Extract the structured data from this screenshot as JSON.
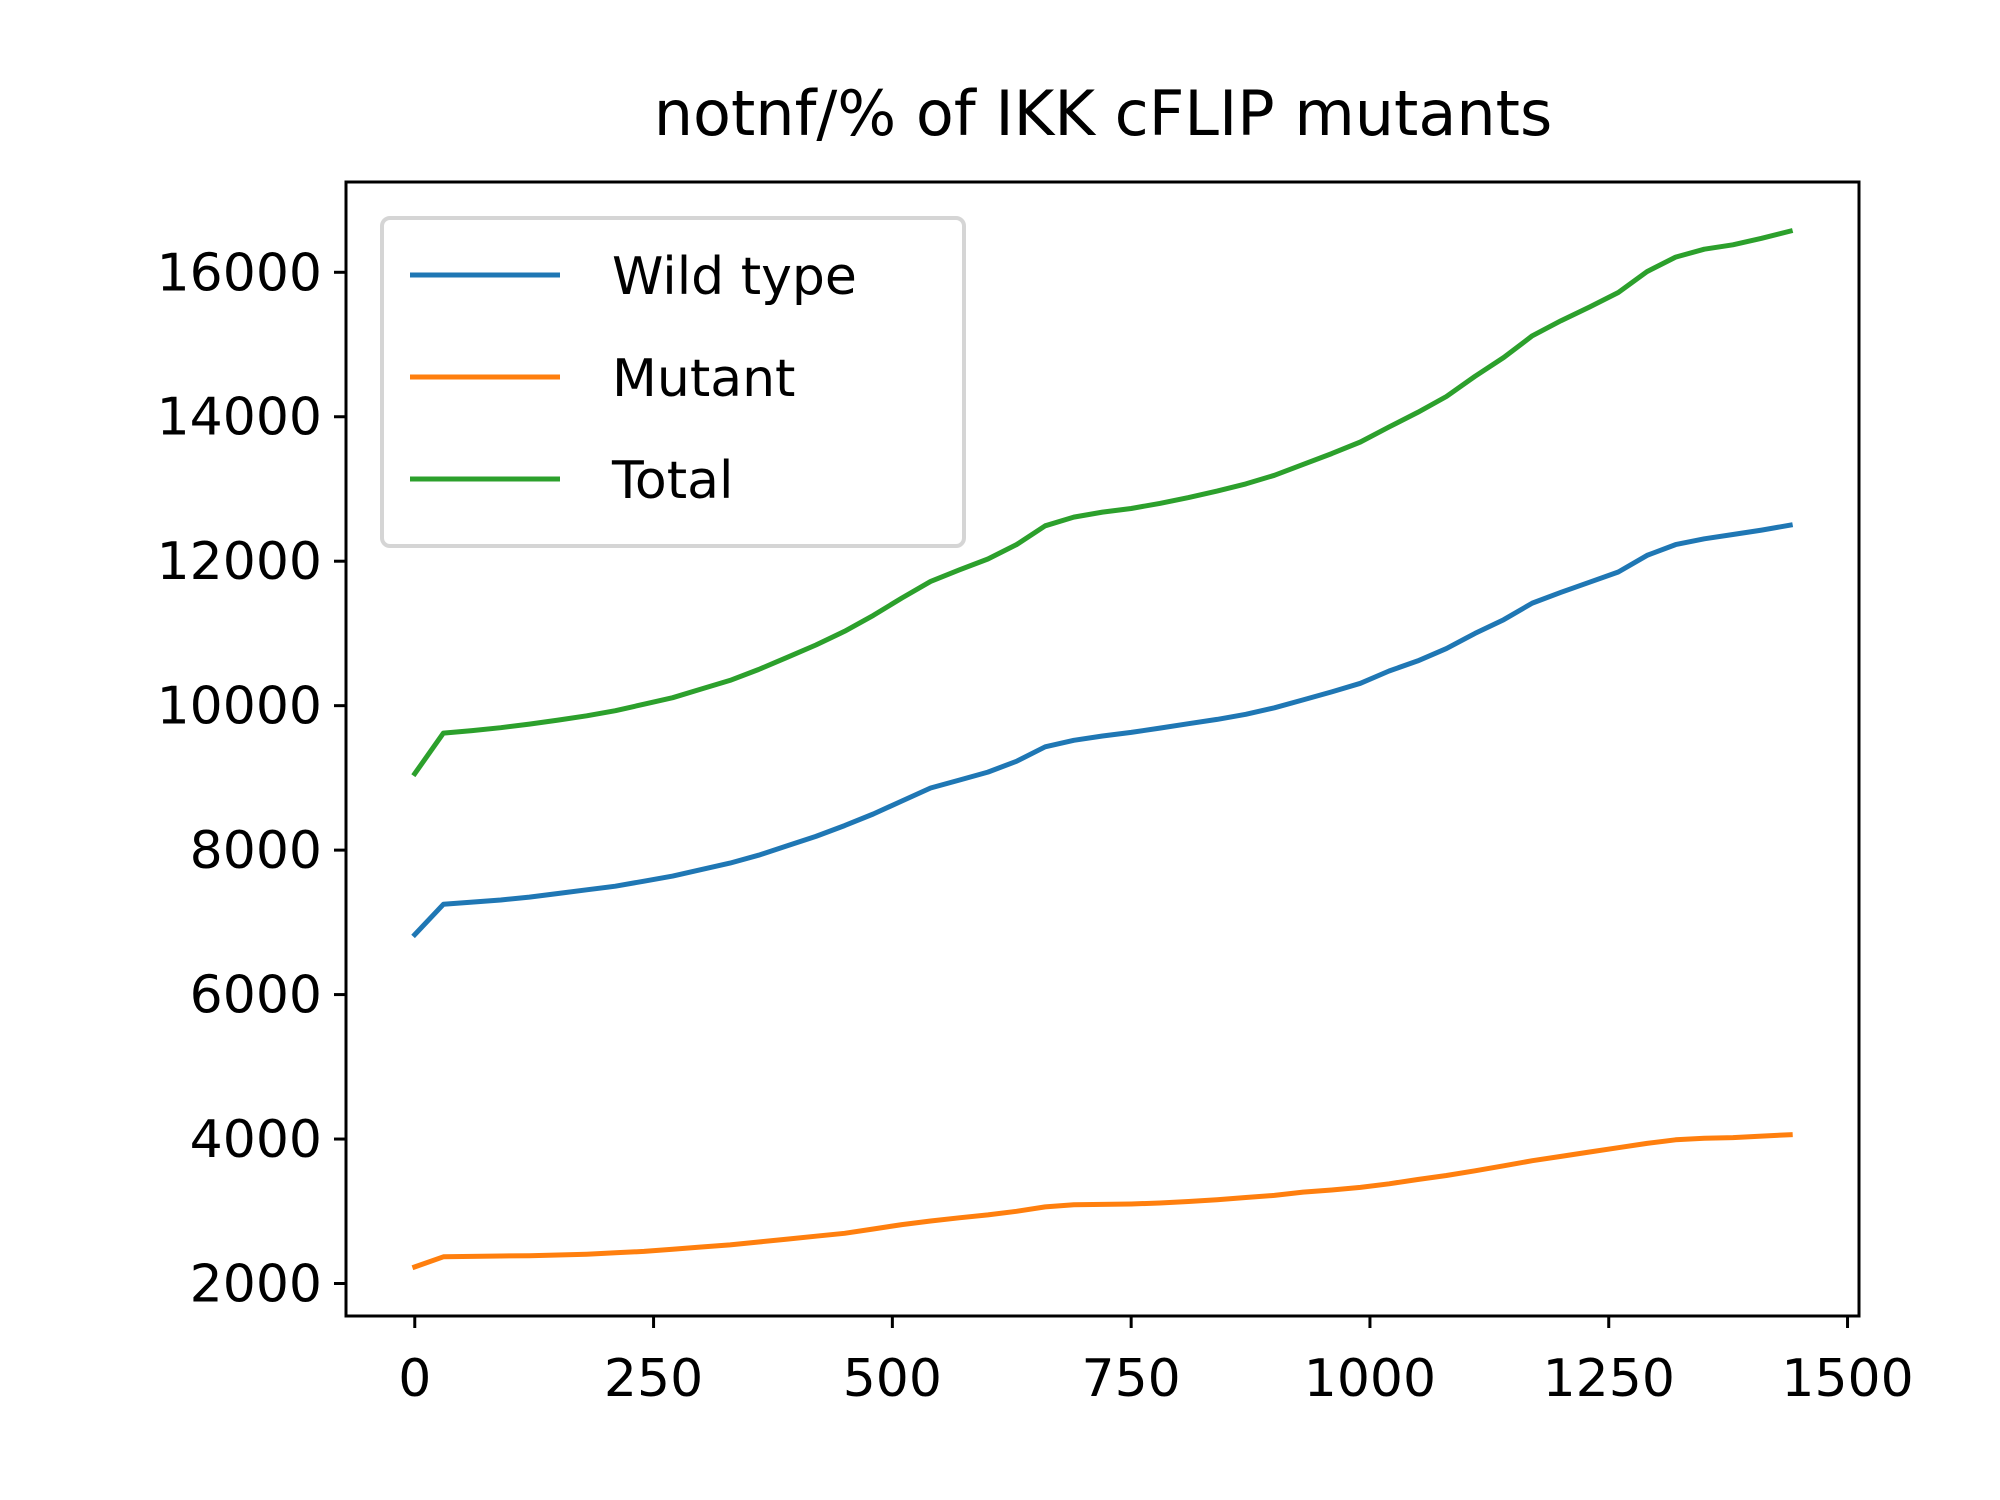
{
  "chart_data": {
    "type": "line",
    "title": "notnf/% of IKK cFLIP mutants",
    "xlabel": "",
    "ylabel": "",
    "xlim": [
      -72,
      1512
    ],
    "ylim": [
      1550,
      17250
    ],
    "xticks": [
      0,
      250,
      500,
      750,
      1000,
      1250,
      1500
    ],
    "yticks": [
      2000,
      4000,
      6000,
      8000,
      10000,
      12000,
      14000,
      16000
    ],
    "grid": false,
    "legend_position": "top-left",
    "x": [
      0,
      30,
      60,
      90,
      120,
      150,
      180,
      210,
      240,
      270,
      300,
      330,
      360,
      390,
      420,
      450,
      480,
      510,
      540,
      570,
      600,
      630,
      660,
      690,
      720,
      750,
      780,
      810,
      840,
      870,
      900,
      930,
      960,
      990,
      1020,
      1050,
      1080,
      1110,
      1140,
      1170,
      1200,
      1230,
      1260,
      1290,
      1320,
      1350,
      1380,
      1410,
      1440
    ],
    "series": [
      {
        "name": "Wild type",
        "color": "#1f77b4",
        "values": [
          6830,
          7250,
          7280,
          7310,
          7350,
          7400,
          7450,
          7500,
          7570,
          7640,
          7730,
          7820,
          7930,
          8060,
          8190,
          8340,
          8500,
          8680,
          8860,
          8970,
          9080,
          9230,
          9430,
          9520,
          9580,
          9630,
          9690,
          9750,
          9810,
          9880,
          9970,
          10080,
          10190,
          10310,
          10480,
          10620,
          10790,
          11000,
          11190,
          11420,
          11570,
          11710,
          11850,
          12080,
          12230,
          12310,
          12370,
          12430,
          12500
        ]
      },
      {
        "name": "Mutant",
        "color": "#ff7f0e",
        "values": [
          2230,
          2370,
          2375,
          2380,
          2385,
          2395,
          2405,
          2425,
          2445,
          2475,
          2505,
          2535,
          2575,
          2615,
          2655,
          2695,
          2755,
          2815,
          2865,
          2910,
          2950,
          3000,
          3060,
          3090,
          3095,
          3100,
          3115,
          3135,
          3160,
          3190,
          3220,
          3265,
          3295,
          3330,
          3380,
          3440,
          3495,
          3560,
          3630,
          3700,
          3760,
          3820,
          3880,
          3940,
          3990,
          4010,
          4020,
          4040,
          4060
        ]
      },
      {
        "name": "Total",
        "color": "#2ca02c",
        "values": [
          9060,
          9620,
          9655,
          9695,
          9745,
          9800,
          9860,
          9930,
          10020,
          10110,
          10230,
          10350,
          10500,
          10670,
          10840,
          11030,
          11250,
          11490,
          11720,
          11880,
          12030,
          12230,
          12490,
          12610,
          12680,
          12730,
          12800,
          12880,
          12970,
          13070,
          13190,
          13340,
          13490,
          13650,
          13860,
          14060,
          14280,
          14560,
          14820,
          15120,
          15330,
          15520,
          15720,
          16010,
          16210,
          16320,
          16380,
          16470,
          16570
        ]
      }
    ]
  }
}
